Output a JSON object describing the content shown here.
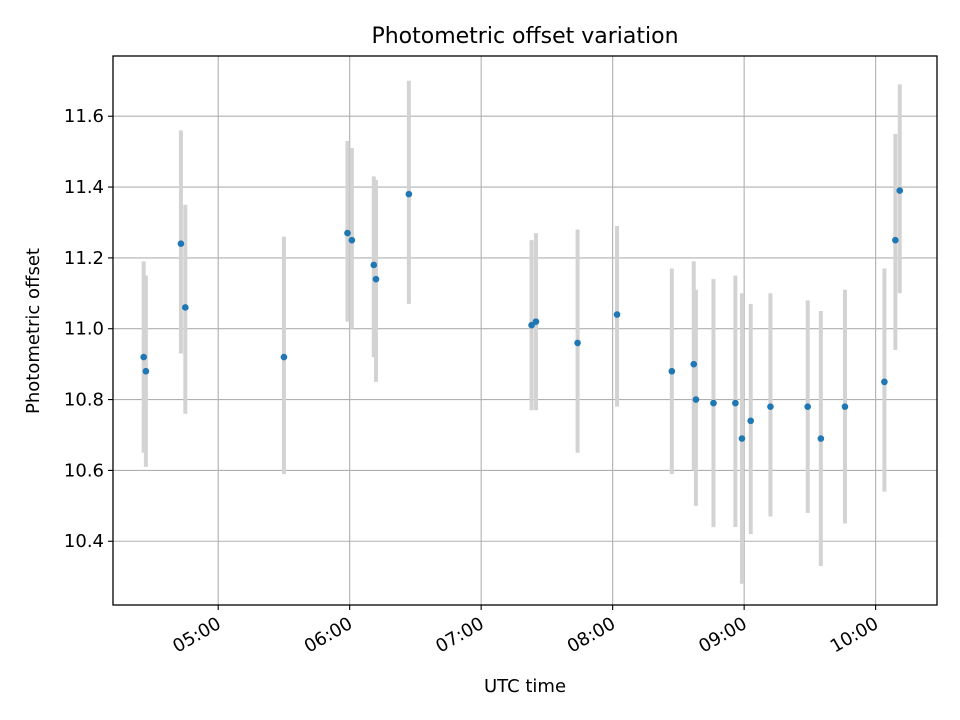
{
  "chart_data": {
    "type": "scatter",
    "title": "Photometric offset variation",
    "xlabel": "UTC time",
    "ylabel": "Photometric offset",
    "x_ticks": [
      "05:00",
      "06:00",
      "07:00",
      "08:00",
      "09:00",
      "10:00"
    ],
    "y_ticks": [
      "10.4",
      "10.6",
      "10.8",
      "11.0",
      "11.2",
      "11.4",
      "11.6"
    ],
    "xlim": [
      "04:12",
      "10:28"
    ],
    "ylim": [
      10.22,
      11.77
    ],
    "grid": true,
    "marker_color": "#1f77b4",
    "errorbar_color": "#d3d3d3",
    "points": [
      {
        "x": "04:26",
        "y": 10.92,
        "ylow": 10.65,
        "yhigh": 11.19
      },
      {
        "x": "04:27",
        "y": 10.88,
        "ylow": 10.61,
        "yhigh": 11.15
      },
      {
        "x": "04:43",
        "y": 11.24,
        "ylow": 10.93,
        "yhigh": 11.56
      },
      {
        "x": "04:45",
        "y": 11.06,
        "ylow": 10.76,
        "yhigh": 11.35
      },
      {
        "x": "05:30",
        "y": 10.92,
        "ylow": 10.59,
        "yhigh": 11.26
      },
      {
        "x": "05:59",
        "y": 11.27,
        "ylow": 11.02,
        "yhigh": 11.53
      },
      {
        "x": "06:01",
        "y": 11.25,
        "ylow": 11.0,
        "yhigh": 11.51
      },
      {
        "x": "06:11",
        "y": 11.18,
        "ylow": 10.92,
        "yhigh": 11.43
      },
      {
        "x": "06:12",
        "y": 11.14,
        "ylow": 10.85,
        "yhigh": 11.42
      },
      {
        "x": "06:27",
        "y": 11.38,
        "ylow": 11.07,
        "yhigh": 11.7
      },
      {
        "x": "07:23",
        "y": 11.01,
        "ylow": 10.77,
        "yhigh": 11.25
      },
      {
        "x": "07:25",
        "y": 11.02,
        "ylow": 10.77,
        "yhigh": 11.27
      },
      {
        "x": "07:44",
        "y": 10.96,
        "ylow": 10.65,
        "yhigh": 11.28
      },
      {
        "x": "08:02",
        "y": 11.04,
        "ylow": 10.78,
        "yhigh": 11.29
      },
      {
        "x": "08:27",
        "y": 10.88,
        "ylow": 10.59,
        "yhigh": 11.17
      },
      {
        "x": "08:37",
        "y": 10.9,
        "ylow": 10.6,
        "yhigh": 11.19
      },
      {
        "x": "08:38",
        "y": 10.8,
        "ylow": 10.5,
        "yhigh": 11.11
      },
      {
        "x": "08:46",
        "y": 10.79,
        "ylow": 10.44,
        "yhigh": 11.14
      },
      {
        "x": "08:56",
        "y": 10.79,
        "ylow": 10.44,
        "yhigh": 11.15
      },
      {
        "x": "08:59",
        "y": 10.69,
        "ylow": 10.28,
        "yhigh": 11.1
      },
      {
        "x": "09:03",
        "y": 10.74,
        "ylow": 10.42,
        "yhigh": 11.07
      },
      {
        "x": "09:12",
        "y": 10.78,
        "ylow": 10.47,
        "yhigh": 11.1
      },
      {
        "x": "09:29",
        "y": 10.78,
        "ylow": 10.48,
        "yhigh": 11.08
      },
      {
        "x": "09:35",
        "y": 10.69,
        "ylow": 10.33,
        "yhigh": 11.05
      },
      {
        "x": "09:46",
        "y": 10.78,
        "ylow": 10.45,
        "yhigh": 11.11
      },
      {
        "x": "10:04",
        "y": 10.85,
        "ylow": 10.54,
        "yhigh": 11.17
      },
      {
        "x": "10:09",
        "y": 11.25,
        "ylow": 10.94,
        "yhigh": 11.55
      },
      {
        "x": "10:11",
        "y": 11.39,
        "ylow": 11.1,
        "yhigh": 11.69
      }
    ]
  }
}
